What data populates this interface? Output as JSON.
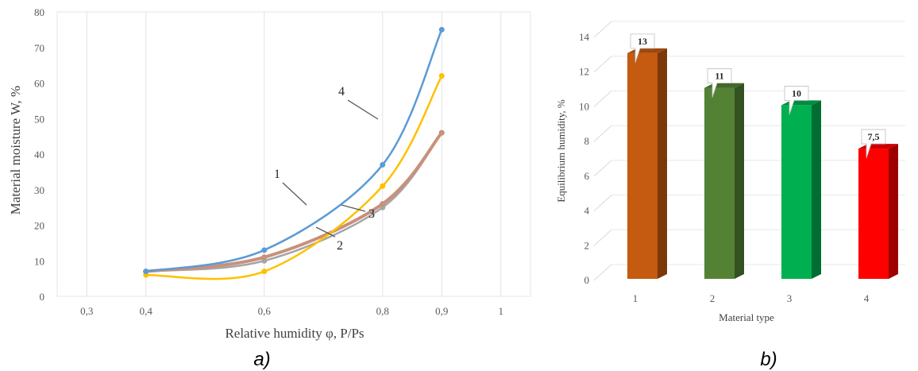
{
  "chart_data": [
    {
      "type": "line",
      "panel_caption": "a)",
      "xlabel": "Relative humidity φ, P/Ps",
      "ylabel": "Material moisture W, %",
      "xlim": [
        0.25,
        1.05
      ],
      "ylim": [
        0,
        80
      ],
      "x_ticks": [
        "0,3",
        "0,4",
        "0,6",
        "0,8",
        "0,9",
        "1"
      ],
      "y_ticks": [
        "0",
        "10",
        "20",
        "30",
        "40",
        "50",
        "60",
        "70",
        "80"
      ],
      "grid": "vertical",
      "x": [
        0.4,
        0.6,
        0.8,
        0.9
      ],
      "series": [
        {
          "name": "1",
          "values": [
            7,
            13,
            37,
            75
          ],
          "color": "#5b9bd5"
        },
        {
          "name": "2",
          "values": [
            7,
            10,
            25,
            46
          ],
          "color": "#a5a5a5"
        },
        {
          "name": "3",
          "values": [
            7,
            11,
            26,
            46
          ],
          "color": "#c9907a"
        },
        {
          "name": "4",
          "values": [
            6,
            7,
            31,
            62
          ],
          "color": "#ffc000"
        }
      ]
    },
    {
      "type": "bar",
      "panel_caption": "b)",
      "xlabel": "Material type",
      "ylabel": "Equilibrium humidity, %",
      "ylim": [
        0,
        14
      ],
      "y_ticks": [
        "0",
        "2",
        "4",
        "6",
        "8",
        "10",
        "12",
        "14"
      ],
      "categories": [
        "1",
        "2",
        "3",
        "4"
      ],
      "values": [
        13,
        11,
        10,
        7.5
      ],
      "data_labels": [
        "13",
        "11",
        "10",
        "7,5"
      ],
      "colors": [
        "#c55a11",
        "#548235",
        "#00b050",
        "#ff0000"
      ]
    }
  ]
}
